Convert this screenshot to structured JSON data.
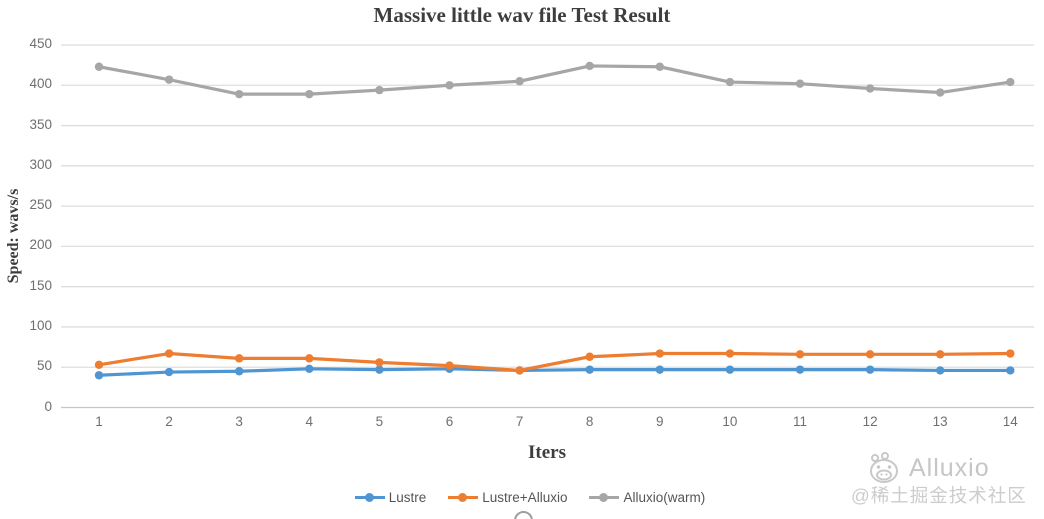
{
  "chart_data": {
    "type": "line",
    "title": "Massive little wav file Test Result",
    "xlabel": "Iters",
    "ylabel": "Speed: wavs/s",
    "categories": [
      "1",
      "2",
      "3",
      "4",
      "5",
      "6",
      "7",
      "8",
      "9",
      "10",
      "11",
      "12",
      "13",
      "14"
    ],
    "series": [
      {
        "name": "Lustre",
        "color": "#4E95D2",
        "values": [
          40,
          44,
          45,
          48,
          47,
          48,
          46,
          47,
          47,
          47,
          47,
          47,
          46,
          46
        ]
      },
      {
        "name": "Lustre+Alluxio",
        "color": "#ED7D31",
        "values": [
          53,
          67,
          61,
          61,
          56,
          52,
          46,
          63,
          67,
          67,
          66,
          66,
          66,
          67
        ]
      },
      {
        "name": "Alluxio(warm)",
        "color": "#A6A6A6",
        "values": [
          423,
          407,
          389,
          389,
          394,
          400,
          405,
          424,
          423,
          404,
          402,
          396,
          391,
          404
        ]
      }
    ],
    "ylim": [
      0,
      450
    ],
    "ytick_step": 50,
    "grid": true,
    "legend_position": "bottom"
  },
  "colors": {
    "gridline": "#dedede",
    "zero_line": "#c6c6c6",
    "tick_text": "#6f6f6f"
  },
  "watermark": {
    "brand": "Alluxio",
    "community": "@稀土掘金技术社区"
  }
}
